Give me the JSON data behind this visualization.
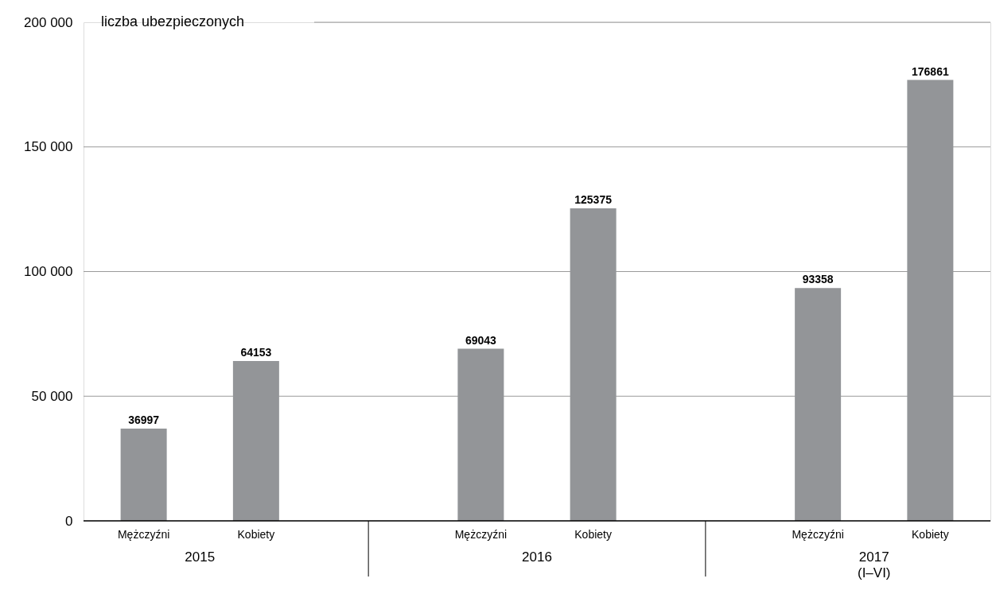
{
  "chart_data": {
    "type": "bar",
    "ylabel": "liczba ubezpieczonych",
    "categories": [
      "Mężczyźni",
      "Kobiety",
      "Mężczyźni",
      "Kobiety",
      "Mężczyźni",
      "Kobiety"
    ],
    "values": [
      36997,
      64153,
      69043,
      125375,
      93358,
      176861
    ],
    "color": "#939598",
    "annotations": [
      "2015",
      "2016",
      "2017\n(I–VI)"
    ],
    "ylim": [
      0,
      200000
    ],
    "yticks": [
      {
        "value": 0,
        "label": "0"
      },
      {
        "value": 50000,
        "label": "50 000"
      },
      {
        "value": 100000,
        "label": "100 000"
      },
      {
        "value": 150000,
        "label": "150 000"
      },
      {
        "value": 200000,
        "label": "200 000"
      }
    ],
    "grid": "y",
    "data_labels": true
  }
}
